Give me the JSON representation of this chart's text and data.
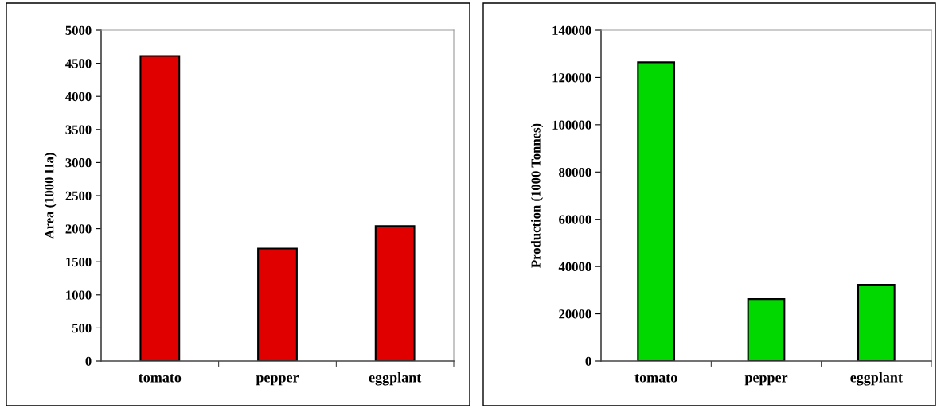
{
  "chart_data": [
    {
      "type": "bar",
      "ylabel": "Area (1000 Ha)",
      "categories": [
        "tomato",
        "pepper",
        "eggplant"
      ],
      "values": [
        4610,
        1700,
        2040
      ],
      "color": "#e00000",
      "ylim": [
        0,
        5000
      ],
      "yticks": [
        0,
        500,
        1000,
        1500,
        2000,
        2500,
        3000,
        3500,
        4000,
        4500,
        5000
      ],
      "grid": false,
      "legend": false
    },
    {
      "type": "bar",
      "ylabel": "Production (1000 Tonnes)",
      "categories": [
        "tomato",
        "pepper",
        "eggplant"
      ],
      "values": [
        126400,
        26200,
        32300
      ],
      "color": "#00d800",
      "ylim": [
        0,
        140000
      ],
      "yticks": [
        0,
        20000,
        40000,
        60000,
        80000,
        100000,
        120000,
        140000
      ],
      "grid": false,
      "legend": false
    }
  ]
}
